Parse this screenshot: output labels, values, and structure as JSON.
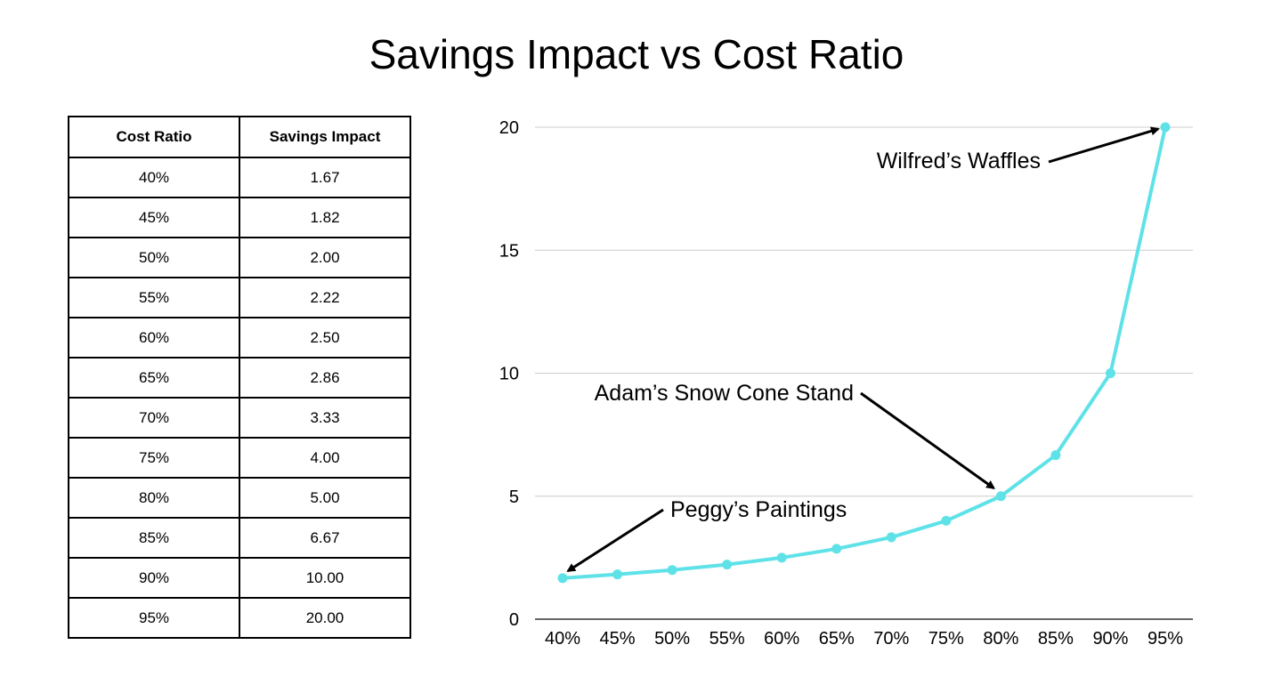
{
  "chart_data": {
    "type": "line",
    "title": "Savings Impact vs Cost Ratio",
    "table": {
      "headers": [
        "Cost Ratio",
        "Savings Impact"
      ],
      "rows": [
        [
          "40%",
          "1.67"
        ],
        [
          "45%",
          "1.82"
        ],
        [
          "50%",
          "2.00"
        ],
        [
          "55%",
          "2.22"
        ],
        [
          "60%",
          "2.50"
        ],
        [
          "65%",
          "2.86"
        ],
        [
          "70%",
          "3.33"
        ],
        [
          "75%",
          "4.00"
        ],
        [
          "80%",
          "5.00"
        ],
        [
          "85%",
          "6.67"
        ],
        [
          "90%",
          "10.00"
        ],
        [
          "95%",
          "20.00"
        ]
      ]
    },
    "categories": [
      "40%",
      "45%",
      "50%",
      "55%",
      "60%",
      "65%",
      "70%",
      "75%",
      "80%",
      "85%",
      "90%",
      "95%"
    ],
    "series": [
      {
        "values": [
          1.67,
          1.82,
          2.0,
          2.22,
          2.5,
          2.86,
          3.33,
          4.0,
          5.0,
          6.67,
          10.0,
          20.0
        ],
        "color": "#5ee2e8"
      }
    ],
    "y_ticks": [
      "0",
      "5",
      "10",
      "15",
      "20"
    ],
    "ylim": [
      0,
      20
    ],
    "grid": true,
    "annotations": [
      {
        "text": "Wilfred’s Waffles",
        "category": "95%",
        "value": 20.0
      },
      {
        "text": "Adam’s Snow Cone Stand",
        "category": "80%",
        "value": 5.0
      },
      {
        "text": "Peggy’s Paintings",
        "category": "40%",
        "value": 1.67
      }
    ]
  }
}
